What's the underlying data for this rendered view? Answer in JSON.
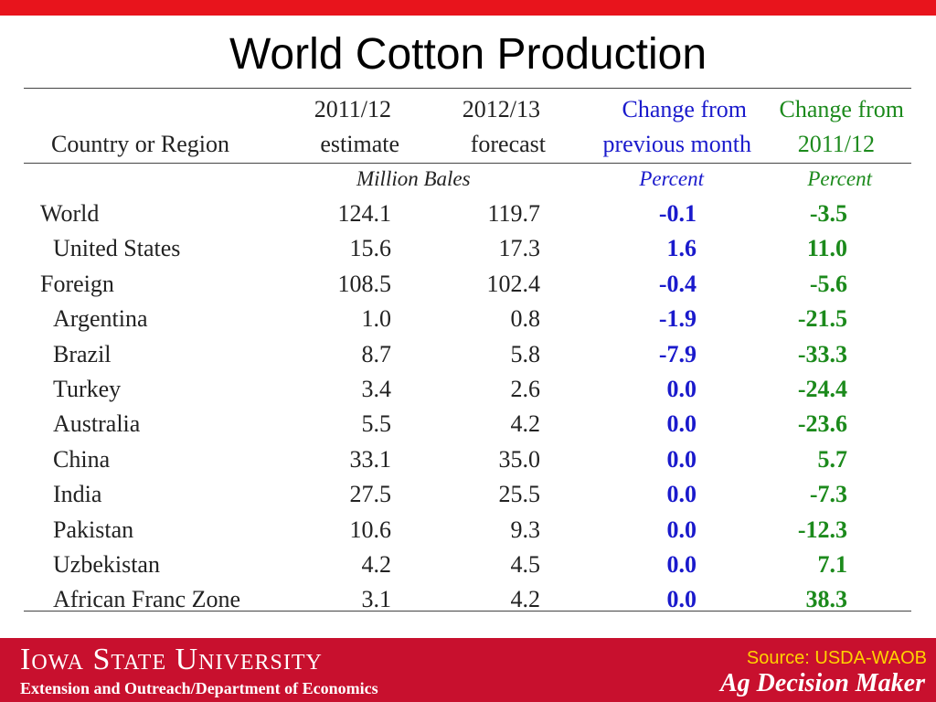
{
  "title": "World Cotton Production",
  "colors": {
    "accent_red": "#c8102e",
    "top_bar": "#e8141c",
    "blue": "#1a1acc",
    "green": "#1c8a1c",
    "gold": "#ffd200"
  },
  "table": {
    "headers": {
      "region": "Country or Region",
      "col1_line1": "2011/12",
      "col1_line2": "estimate",
      "col2_line1": "2012/13",
      "col2_line2": "forecast",
      "col3_line1": "Change from",
      "col3_line2": "previous month",
      "col4_line1": "Change from",
      "col4_line2": "2011/12"
    },
    "units": {
      "bales": "Million Bales",
      "pct_month": "Percent",
      "pct_year": "Percent"
    },
    "rows": [
      {
        "name": "World",
        "estimate": "124.1",
        "forecast": "119.7",
        "chg_month": "-0.1",
        "chg_year": "-3.5"
      },
      {
        "name": "United States",
        "estimate": "15.6",
        "forecast": "17.3",
        "chg_month": "1.6",
        "chg_year": "11.0"
      },
      {
        "name": "Foreign",
        "estimate": "108.5",
        "forecast": "102.4",
        "chg_month": "-0.4",
        "chg_year": "-5.6"
      },
      {
        "name": "Argentina",
        "estimate": "1.0",
        "forecast": "0.8",
        "chg_month": "-1.9",
        "chg_year": "-21.5"
      },
      {
        "name": "Brazil",
        "estimate": "8.7",
        "forecast": "5.8",
        "chg_month": "-7.9",
        "chg_year": "-33.3"
      },
      {
        "name": "Turkey",
        "estimate": "3.4",
        "forecast": "2.6",
        "chg_month": "0.0",
        "chg_year": "-24.4"
      },
      {
        "name": "Australia",
        "estimate": "5.5",
        "forecast": "4.2",
        "chg_month": "0.0",
        "chg_year": "-23.6"
      },
      {
        "name": "China",
        "estimate": "33.1",
        "forecast": "35.0",
        "chg_month": "0.0",
        "chg_year": "5.7"
      },
      {
        "name": "India",
        "estimate": "27.5",
        "forecast": "25.5",
        "chg_month": "0.0",
        "chg_year": "-7.3"
      },
      {
        "name": "Pakistan",
        "estimate": "10.6",
        "forecast": "9.3",
        "chg_month": "0.0",
        "chg_year": "-12.3"
      },
      {
        "name": "Uzbekistan",
        "estimate": "4.2",
        "forecast": "4.5",
        "chg_month": "0.0",
        "chg_year": "7.1"
      },
      {
        "name": "African Franc Zone",
        "estimate": "3.1",
        "forecast": "4.2",
        "chg_month": "0.0",
        "chg_year": "38.3"
      }
    ]
  },
  "footer": {
    "university": "Iowa State University",
    "department": "Extension and Outreach/Department of Economics",
    "source": "Source: USDA-WAOB",
    "brand": "Ag Decision Maker"
  }
}
